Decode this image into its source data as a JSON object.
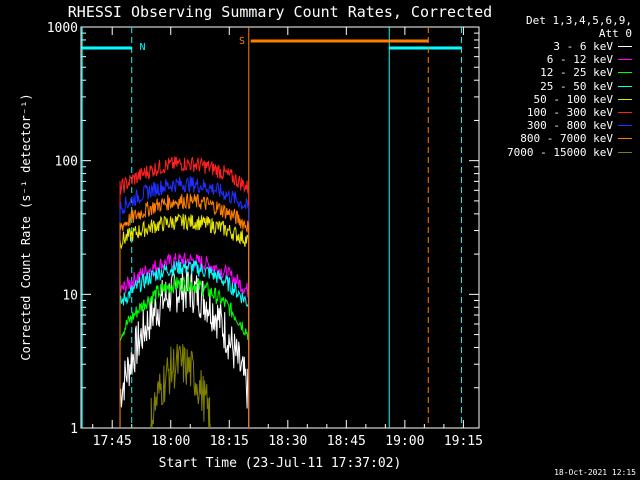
{
  "chart_data": {
    "type": "line",
    "title": "RHESSI Observing Summary Count Rates, Corrected",
    "xlabel": "Start Time (23-Jul-11 17:37:02)",
    "ylabel": "Corrected Count Rate (s⁻¹ detector⁻¹)",
    "yscale": "log",
    "ylim": [
      1,
      1000
    ],
    "xlim_minutes": [
      0,
      102
    ],
    "x_ticks": [
      "17:45",
      "18:00",
      "18:15",
      "18:30",
      "18:45",
      "19:00",
      "19:15"
    ],
    "y_ticks": [
      "1",
      "10",
      "100",
      "1000"
    ],
    "legend_header": [
      "Det 1,3,4,5,6,9,",
      "Att 0"
    ],
    "timestamp": "18-Oct-2021 12:15",
    "annotations": [
      {
        "label": "N",
        "color": "#00ffff"
      },
      {
        "label": "S",
        "color": "#ff8000"
      }
    ],
    "series": [
      {
        "name": "3 - 6 keV",
        "color": "#ffffff",
        "start": 10,
        "end": 43,
        "peak": 11,
        "base": 1.8
      },
      {
        "name": "6 - 12 keV",
        "color": "#ff00ff",
        "start": 10,
        "end": 43,
        "peak": 18,
        "base": 10.5
      },
      {
        "name": "12 - 25 keV",
        "color": "#00ff00",
        "start": 10,
        "end": 43,
        "peak": 12,
        "base": 5
      },
      {
        "name": "25 - 50 keV",
        "color": "#00ffff",
        "start": 10,
        "end": 43,
        "peak": 16,
        "base": 8.5
      },
      {
        "name": "50 - 100 keV",
        "color": "#e6e600",
        "start": 10,
        "end": 43,
        "peak": 35,
        "base": 25
      },
      {
        "name": "100 - 300 keV",
        "color": "#ff2020",
        "start": 10,
        "end": 43,
        "peak": 95,
        "base": 62
      },
      {
        "name": "300 - 800 keV",
        "color": "#2030ff",
        "start": 10,
        "end": 43,
        "peak": 67,
        "base": 44
      },
      {
        "name": "800 - 7000 keV",
        "color": "#ff8000",
        "start": 10,
        "end": 43,
        "peak": 50,
        "base": 32
      },
      {
        "name": "7000 - 15000 keV",
        "color": "#808000",
        "start": 18,
        "end": 33,
        "peak": 3.0,
        "base": 1.2
      }
    ]
  }
}
